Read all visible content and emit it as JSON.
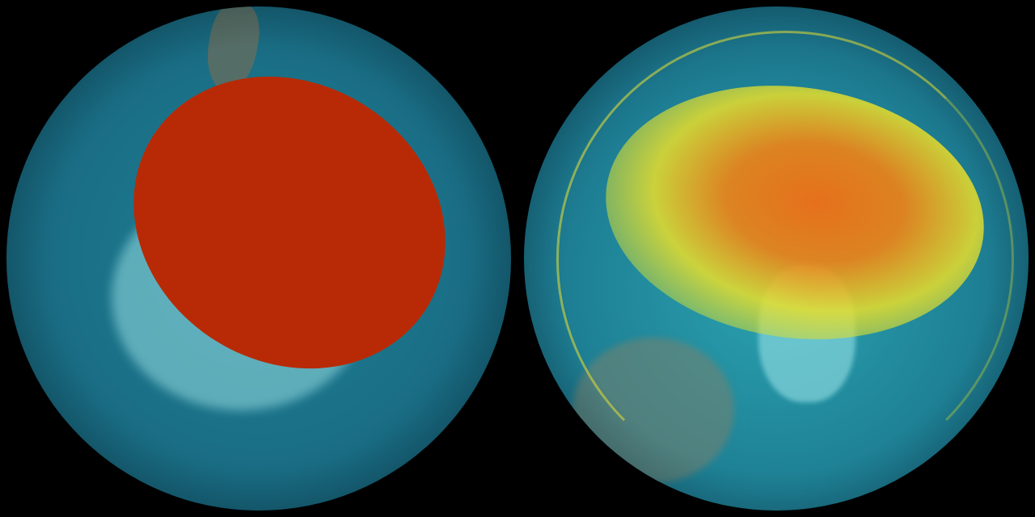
{
  "colors": {
    "background": "#000000",
    "ocean_teal": "#1f7f93",
    "ice_cyan": "#7fd6da",
    "ozone_red": "#b82a06",
    "ozone_orange": "#ef6a10",
    "ozone_yellow": "#e8de2a"
  },
  "panels": [
    {
      "view": "south-pole"
    },
    {
      "view": "north-pole"
    }
  ]
}
